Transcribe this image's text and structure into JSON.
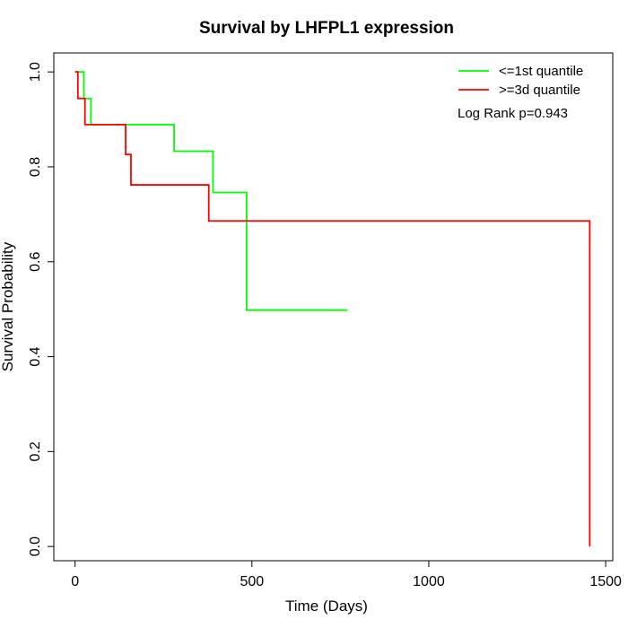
{
  "chart_data": {
    "type": "line",
    "title": "Survival by LHFPL1 expression",
    "xlabel": "Time (Days)",
    "ylabel": "Survival Probability",
    "xlim": [
      -60,
      1520
    ],
    "ylim": [
      -0.03,
      1.04
    ],
    "xticks": [
      0,
      500,
      1000,
      1500
    ],
    "yticks": [
      0.0,
      0.2,
      0.4,
      0.6,
      0.8,
      1.0
    ],
    "xtick_labels": [
      "0",
      "500",
      "1000",
      "1500"
    ],
    "ytick_labels": [
      "0.0",
      "0.2",
      "0.4",
      "0.6",
      "0.8",
      "1.0"
    ],
    "grid": false,
    "legend_position": "top-right",
    "annotation": "Log Rank p=0.943",
    "series": [
      {
        "name": "<=1st quantile",
        "color": "#00ff00",
        "step": true,
        "x": [
          0,
          25,
          45,
          280,
          390,
          485,
          770
        ],
        "y": [
          1.0,
          0.944,
          0.889,
          0.833,
          0.746,
          0.498,
          0.498
        ]
      },
      {
        "name": ">=3d quantile",
        "color": "#ff0000",
        "step": true,
        "x": [
          0,
          8,
          28,
          143,
          158,
          378,
          1455,
          1455
        ],
        "y": [
          1.0,
          0.944,
          0.889,
          0.826,
          0.762,
          0.686,
          0.686,
          0.0
        ]
      }
    ]
  }
}
